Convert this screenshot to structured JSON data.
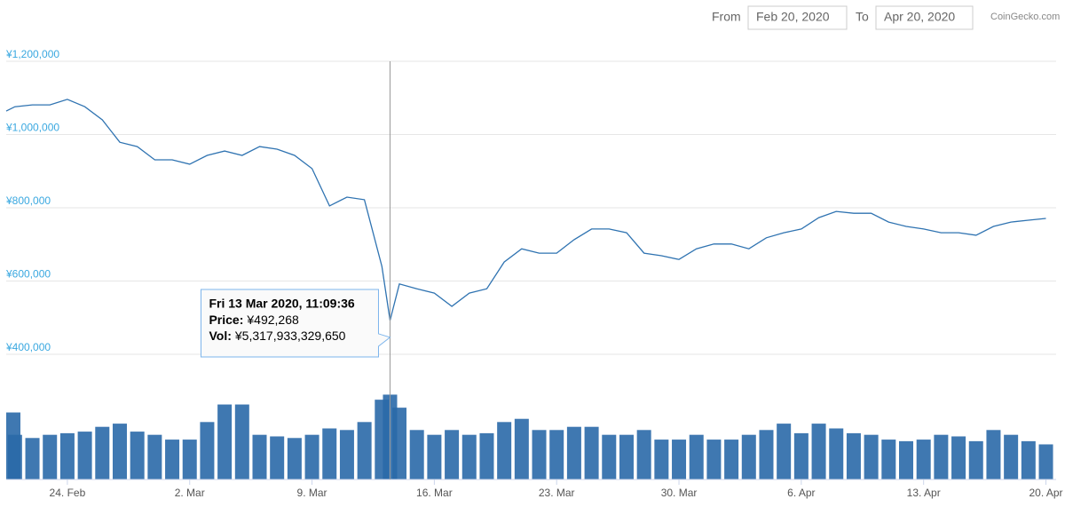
{
  "header": {
    "from_label": "From",
    "from": "Feb 20, 2020",
    "to_label": "To",
    "to": "Apr 20, 2020",
    "credit": "CoinGecko.com"
  },
  "chart_data": [
    {
      "type": "line",
      "xlim": [
        "2020-02-20T12:00",
        "2020-04-20T14:00"
      ],
      "ylim": [
        400000,
        1200000
      ],
      "yticks": [
        {
          "value": 400000,
          "label": "¥400,000"
        },
        {
          "value": 600000,
          "label": "¥600,000"
        },
        {
          "value": 800000,
          "label": "¥800,000"
        },
        {
          "value": 1000000,
          "label": "¥1,000,000"
        },
        {
          "value": 1200000,
          "label": "¥1,200,000"
        }
      ],
      "grid": true,
      "tooltip": "Fri 13 Mar 2020, 11:09:36",
      "x": [
        "2020-02-20T12:00",
        "2020-02-21T00:00",
        "2020-02-22T00:00",
        "2020-02-23T00:00",
        "2020-02-24T00:00",
        "2020-02-25T00:00",
        "2020-02-26T00:00",
        "2020-02-27T00:00",
        "2020-02-28T00:00",
        "2020-02-29T00:00",
        "2020-03-01T00:00",
        "2020-03-02T00:00",
        "2020-03-03T00:00",
        "2020-03-04T00:00",
        "2020-03-05T00:00",
        "2020-03-06T00:00",
        "2020-03-07T00:00",
        "2020-03-08T00:00",
        "2020-03-09T00:00",
        "2020-03-10T00:00",
        "2020-03-11T00:00",
        "2020-03-12T00:00",
        "2020-03-13T00:00",
        "2020-03-13T11:09:36",
        "2020-03-14T00:00",
        "2020-03-15T00:00",
        "2020-03-16T00:00",
        "2020-03-17T00:00",
        "2020-03-18T00:00",
        "2020-03-19T00:00",
        "2020-03-20T00:00",
        "2020-03-21T00:00",
        "2020-03-22T00:00",
        "2020-03-23T00:00",
        "2020-03-24T00:00",
        "2020-03-25T00:00",
        "2020-03-26T00:00",
        "2020-03-27T00:00",
        "2020-03-28T00:00",
        "2020-03-29T00:00",
        "2020-03-30T00:00",
        "2020-03-31T00:00",
        "2020-04-01T00:00",
        "2020-04-02T00:00",
        "2020-04-03T00:00",
        "2020-04-04T00:00",
        "2020-04-05T00:00",
        "2020-04-06T00:00",
        "2020-04-07T00:00",
        "2020-04-08T00:00",
        "2020-04-09T00:00",
        "2020-04-10T00:00",
        "2020-04-11T00:00",
        "2020-04-12T00:00",
        "2020-04-13T00:00",
        "2020-04-14T00:00",
        "2020-04-15T00:00",
        "2020-04-16T00:00",
        "2020-04-17T00:00",
        "2020-04-18T00:00",
        "2020-04-19T00:00",
        "2020-04-20T00:00"
      ],
      "series": [
        {
          "name": "Price:",
          "color": "#2f73b1",
          "values": [
            1064000,
            1076000,
            1081000,
            1081000,
            1096000,
            1076000,
            1040000,
            979000,
            967000,
            931000,
            931000,
            919000,
            943000,
            955000,
            943000,
            967000,
            960000,
            943000,
            907000,
            805000,
            829000,
            822000,
            640000,
            492268,
            592000,
            579000,
            567000,
            531000,
            567000,
            579000,
            652000,
            688000,
            676000,
            676000,
            713000,
            742000,
            742000,
            732000,
            676000,
            669000,
            659000,
            688000,
            701000,
            701000,
            688000,
            718000,
            732000,
            742000,
            773000,
            790000,
            785000,
            785000,
            761000,
            749000,
            742000,
            732000,
            732000,
            725000,
            749000,
            761000,
            766000,
            771000
          ],
          "value_labels": [
            null,
            null,
            null,
            null,
            null,
            null,
            null,
            null,
            null,
            null,
            null,
            null,
            null,
            null,
            null,
            null,
            null,
            null,
            null,
            null,
            null,
            null,
            null,
            "¥492,268",
            null,
            null,
            null,
            null,
            null,
            null,
            null,
            null,
            null,
            null,
            null,
            null,
            null,
            null,
            null,
            null,
            null,
            null,
            null,
            null,
            null,
            null,
            null,
            null,
            null,
            null,
            null,
            null,
            null,
            null,
            null,
            null,
            null,
            null,
            null,
            null,
            null,
            null
          ]
        }
      ]
    },
    {
      "type": "bar",
      "xlim": [
        "2020-02-20T12:00",
        "2020-04-20T14:00"
      ],
      "ylim": [
        0,
        6400000000000.0
      ],
      "xticks": [
        {
          "value": "2020-02-24T00:00",
          "label": "24. Feb"
        },
        {
          "value": "2020-03-02T00:00",
          "label": "2. Mar"
        },
        {
          "value": "2020-03-09T00:00",
          "label": "9. Mar"
        },
        {
          "value": "2020-03-16T00:00",
          "label": "16. Mar"
        },
        {
          "value": "2020-03-23T00:00",
          "label": "23. Mar"
        },
        {
          "value": "2020-03-30T00:00",
          "label": "30. Mar"
        },
        {
          "value": "2020-04-06T00:00",
          "label": "6. Apr"
        },
        {
          "value": "2020-04-13T00:00",
          "label": "13. Apr"
        },
        {
          "value": "2020-04-20T00:00",
          "label": "20. Apr"
        }
      ],
      "x": [
        "2020-02-20T12:00",
        "2020-02-21T00:00",
        "2020-02-22T00:00",
        "2020-02-23T00:00",
        "2020-02-24T00:00",
        "2020-02-25T00:00",
        "2020-02-26T00:00",
        "2020-02-27T00:00",
        "2020-02-28T00:00",
        "2020-02-29T00:00",
        "2020-03-01T00:00",
        "2020-03-02T00:00",
        "2020-03-03T00:00",
        "2020-03-04T00:00",
        "2020-03-05T00:00",
        "2020-03-06T00:00",
        "2020-03-07T00:00",
        "2020-03-08T00:00",
        "2020-03-09T00:00",
        "2020-03-10T00:00",
        "2020-03-11T00:00",
        "2020-03-12T00:00",
        "2020-03-13T00:00",
        "2020-03-13T11:09:36",
        "2020-03-14T00:00",
        "2020-03-15T00:00",
        "2020-03-16T00:00",
        "2020-03-17T00:00",
        "2020-03-18T00:00",
        "2020-03-19T00:00",
        "2020-03-20T00:00",
        "2020-03-21T00:00",
        "2020-03-22T00:00",
        "2020-03-23T00:00",
        "2020-03-24T00:00",
        "2020-03-25T00:00",
        "2020-03-26T00:00",
        "2020-03-27T00:00",
        "2020-03-28T00:00",
        "2020-03-29T00:00",
        "2020-03-30T00:00",
        "2020-03-31T00:00",
        "2020-04-01T00:00",
        "2020-04-02T00:00",
        "2020-04-03T00:00",
        "2020-04-04T00:00",
        "2020-04-05T00:00",
        "2020-04-06T00:00",
        "2020-04-07T00:00",
        "2020-04-08T00:00",
        "2020-04-09T00:00",
        "2020-04-10T00:00",
        "2020-04-11T00:00",
        "2020-04-12T00:00",
        "2020-04-13T00:00",
        "2020-04-14T00:00",
        "2020-04-15T00:00",
        "2020-04-16T00:00",
        "2020-04-17T00:00",
        "2020-04-18T00:00",
        "2020-04-19T00:00",
        "2020-04-20T00:00"
      ],
      "series": [
        {
          "name": "Vol:",
          "color": "#2a69a8",
          "values": [
            4200000000000.0,
            2800000000000.0,
            2600000000000.0,
            2800000000000.0,
            2900000000000.0,
            3000000000000.0,
            3300000000000.0,
            3500000000000.0,
            3000000000000.0,
            2800000000000.0,
            2500000000000.0,
            2500000000000.0,
            3600000000000.0,
            4700000000000.0,
            4700000000000.0,
            2800000000000.0,
            2700000000000.0,
            2600000000000.0,
            2800000000000.0,
            3200000000000.0,
            3100000000000.0,
            3600000000000.0,
            5000000000000.0,
            5317933329650,
            4500000000000.0,
            3100000000000.0,
            2800000000000.0,
            3100000000000.0,
            2800000000000.0,
            2900000000000.0,
            3600000000000.0,
            3800000000000.0,
            3100000000000.0,
            3100000000000.0,
            3300000000000.0,
            3300000000000.0,
            2800000000000.0,
            2800000000000.0,
            3100000000000.0,
            2500000000000.0,
            2500000000000.0,
            2800000000000.0,
            2500000000000.0,
            2500000000000.0,
            2800000000000.0,
            3100000000000.0,
            3500000000000.0,
            2900000000000.0,
            3500000000000.0,
            3200000000000.0,
            2900000000000.0,
            2800000000000.0,
            2500000000000.0,
            2400000000000.0,
            2500000000000.0,
            2800000000000.0,
            2700000000000.0,
            2400000000000.0,
            3100000000000.0,
            2800000000000.0,
            2400000000000.0,
            2200000000000.0
          ],
          "value_labels": [
            null,
            null,
            null,
            null,
            null,
            null,
            null,
            null,
            null,
            null,
            null,
            null,
            null,
            null,
            null,
            null,
            null,
            null,
            null,
            null,
            null,
            null,
            null,
            "¥5,317,933,329,650",
            null,
            null,
            null,
            null,
            null,
            null,
            null,
            null,
            null,
            null,
            null,
            null,
            null,
            null,
            null,
            null,
            null,
            null,
            null,
            null,
            null,
            null,
            null,
            null,
            null,
            null,
            null,
            null,
            null,
            null,
            null,
            null,
            null,
            null,
            null,
            null,
            null,
            null
          ]
        }
      ]
    }
  ]
}
